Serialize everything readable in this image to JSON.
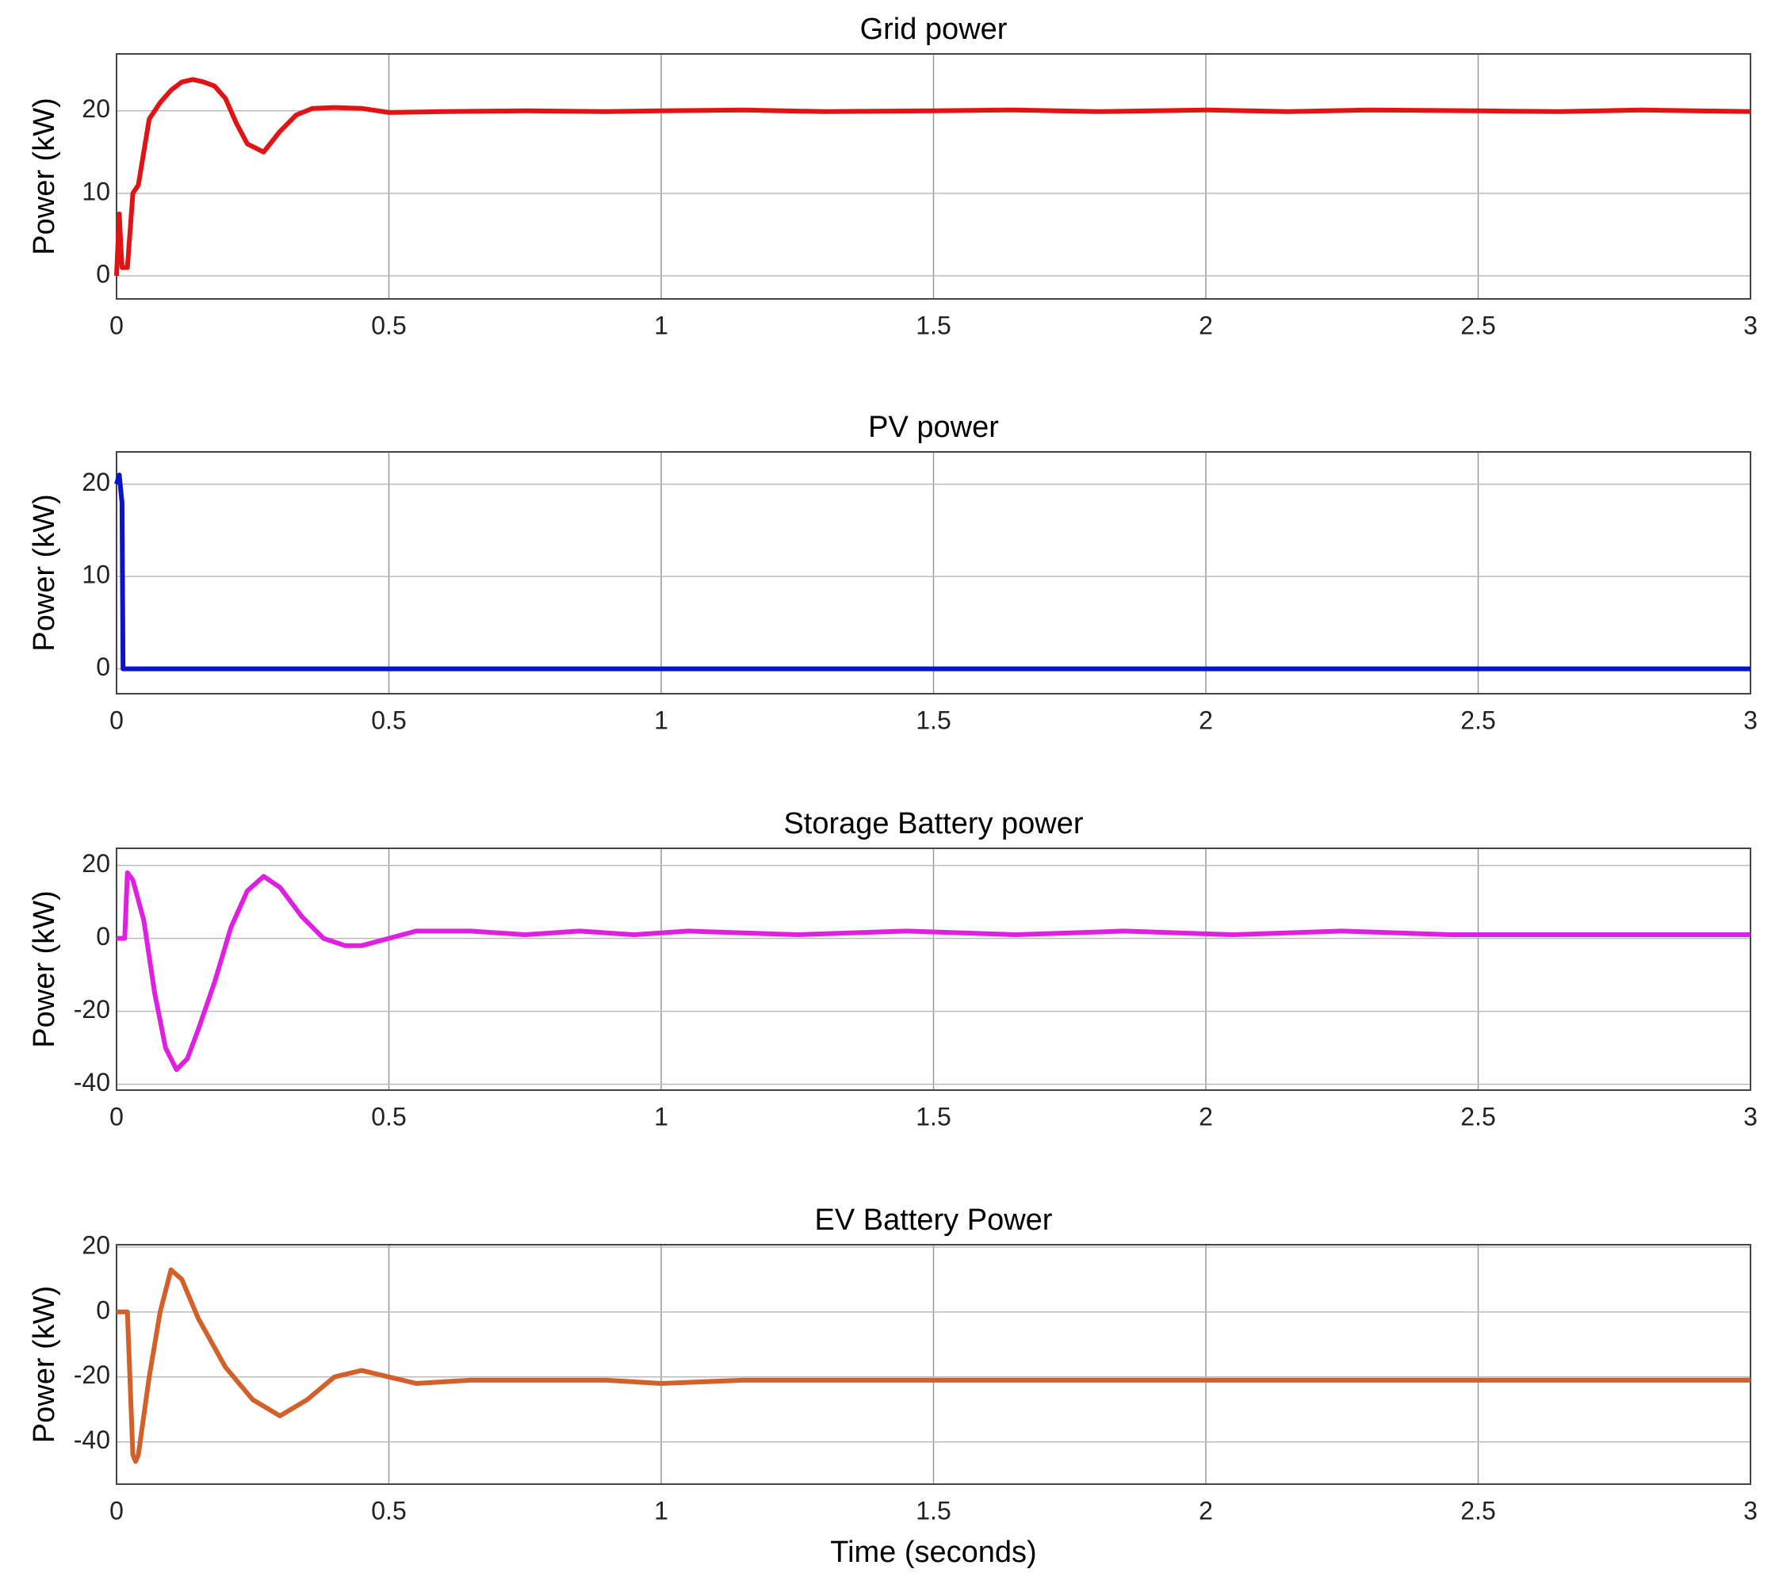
{
  "chart_data": [
    {
      "type": "line",
      "title": "Grid power",
      "ylabel": "Power (kW)",
      "color": "#e01414",
      "x": [
        0,
        0.005,
        0.01,
        0.02,
        0.03,
        0.04,
        0.06,
        0.08,
        0.1,
        0.12,
        0.14,
        0.16,
        0.18,
        0.2,
        0.22,
        0.24,
        0.27,
        0.3,
        0.33,
        0.36,
        0.4,
        0.45,
        0.5,
        0.6,
        0.75,
        0.9,
        1,
        1.15,
        1.3,
        1.5,
        1.65,
        1.8,
        2,
        2.15,
        2.3,
        2.5,
        2.65,
        2.8,
        3
      ],
      "values": [
        0,
        7.5,
        1,
        1,
        10,
        11,
        19,
        21,
        22.5,
        23.5,
        23.8,
        23.5,
        23,
        21.5,
        18.5,
        16,
        15,
        17.5,
        19.5,
        20.3,
        20.4,
        20.3,
        19.8,
        19.9,
        20,
        19.9,
        20,
        20.1,
        19.9,
        20,
        20.1,
        19.9,
        20.1,
        19.9,
        20.1,
        20,
        19.9,
        20.1,
        19.9
      ],
      "xlim": [
        0,
        3
      ],
      "ylim": [
        -2.8,
        26.9
      ],
      "xticks": [
        0,
        0.5,
        1,
        1.5,
        2,
        2.5,
        3
      ],
      "yticks": [
        0,
        10,
        20
      ],
      "grid": true
    },
    {
      "type": "line",
      "title": "PV power",
      "ylabel": "Power (kW)",
      "color": "#0a14c8",
      "x": [
        0,
        0.005,
        0.01,
        0.012,
        0.02,
        3
      ],
      "values": [
        20,
        21,
        18,
        0,
        0,
        0
      ],
      "xlim": [
        0,
        3
      ],
      "ylim": [
        -2.7,
        23.5
      ],
      "xticks": [
        0,
        0.5,
        1,
        1.5,
        2,
        2.5,
        3
      ],
      "yticks": [
        0,
        10,
        20
      ],
      "grid": true
    },
    {
      "type": "line",
      "title": "Storage Battery power",
      "ylabel": "Power (kW)",
      "color": "#e020e0",
      "x": [
        0,
        0.015,
        0.02,
        0.03,
        0.05,
        0.07,
        0.09,
        0.11,
        0.13,
        0.15,
        0.18,
        0.21,
        0.24,
        0.27,
        0.3,
        0.34,
        0.38,
        0.42,
        0.45,
        0.5,
        0.55,
        0.65,
        0.75,
        0.85,
        0.95,
        1.05,
        1.25,
        1.45,
        1.65,
        1.85,
        2.05,
        2.25,
        2.45,
        2.65,
        2.85,
        3
      ],
      "values": [
        0,
        0,
        18,
        16,
        5,
        -15,
        -30,
        -36,
        -33,
        -25,
        -12,
        3,
        13,
        17,
        14,
        6,
        0,
        -2,
        -2,
        0,
        2,
        2,
        1,
        2,
        1,
        2,
        1,
        2,
        1,
        2,
        1,
        2,
        1,
        1,
        1,
        1
      ],
      "xlim": [
        0,
        3
      ],
      "ylim": [
        -41.6,
        24.7
      ],
      "xticks": [
        0,
        0.5,
        1,
        1.5,
        2,
        2.5,
        3
      ],
      "yticks": [
        -40,
        -20,
        0,
        20
      ],
      "grid": true
    },
    {
      "type": "line",
      "title": "EV Battery Power",
      "ylabel": "Power (kW)",
      "xlabel": "Time (seconds)",
      "color": "#d2602a",
      "x": [
        0,
        0.01,
        0.02,
        0.03,
        0.035,
        0.04,
        0.06,
        0.08,
        0.1,
        0.12,
        0.15,
        0.2,
        0.25,
        0.3,
        0.35,
        0.4,
        0.45,
        0.5,
        0.55,
        0.65,
        0.75,
        0.9,
        1,
        1.15,
        1.3,
        1.5,
        1.7,
        1.9,
        2.1,
        2.3,
        2.5,
        2.7,
        2.9,
        3
      ],
      "values": [
        0,
        0,
        0,
        -44,
        -46,
        -44,
        -20,
        0,
        13,
        10,
        -2,
        -17,
        -27,
        -32,
        -27,
        -20,
        -18,
        -20,
        -22,
        -21,
        -21,
        -21,
        -22,
        -21,
        -21,
        -21,
        -21,
        -21,
        -21,
        -21,
        -21,
        -21,
        -21,
        -21
      ],
      "xlim": [
        0,
        3
      ],
      "ylim": [
        -53,
        20.7
      ],
      "xticks": [
        0,
        0.5,
        1,
        1.5,
        2,
        2.5,
        3
      ],
      "yticks": [
        -40,
        -20,
        0,
        20
      ],
      "grid": true
    }
  ]
}
